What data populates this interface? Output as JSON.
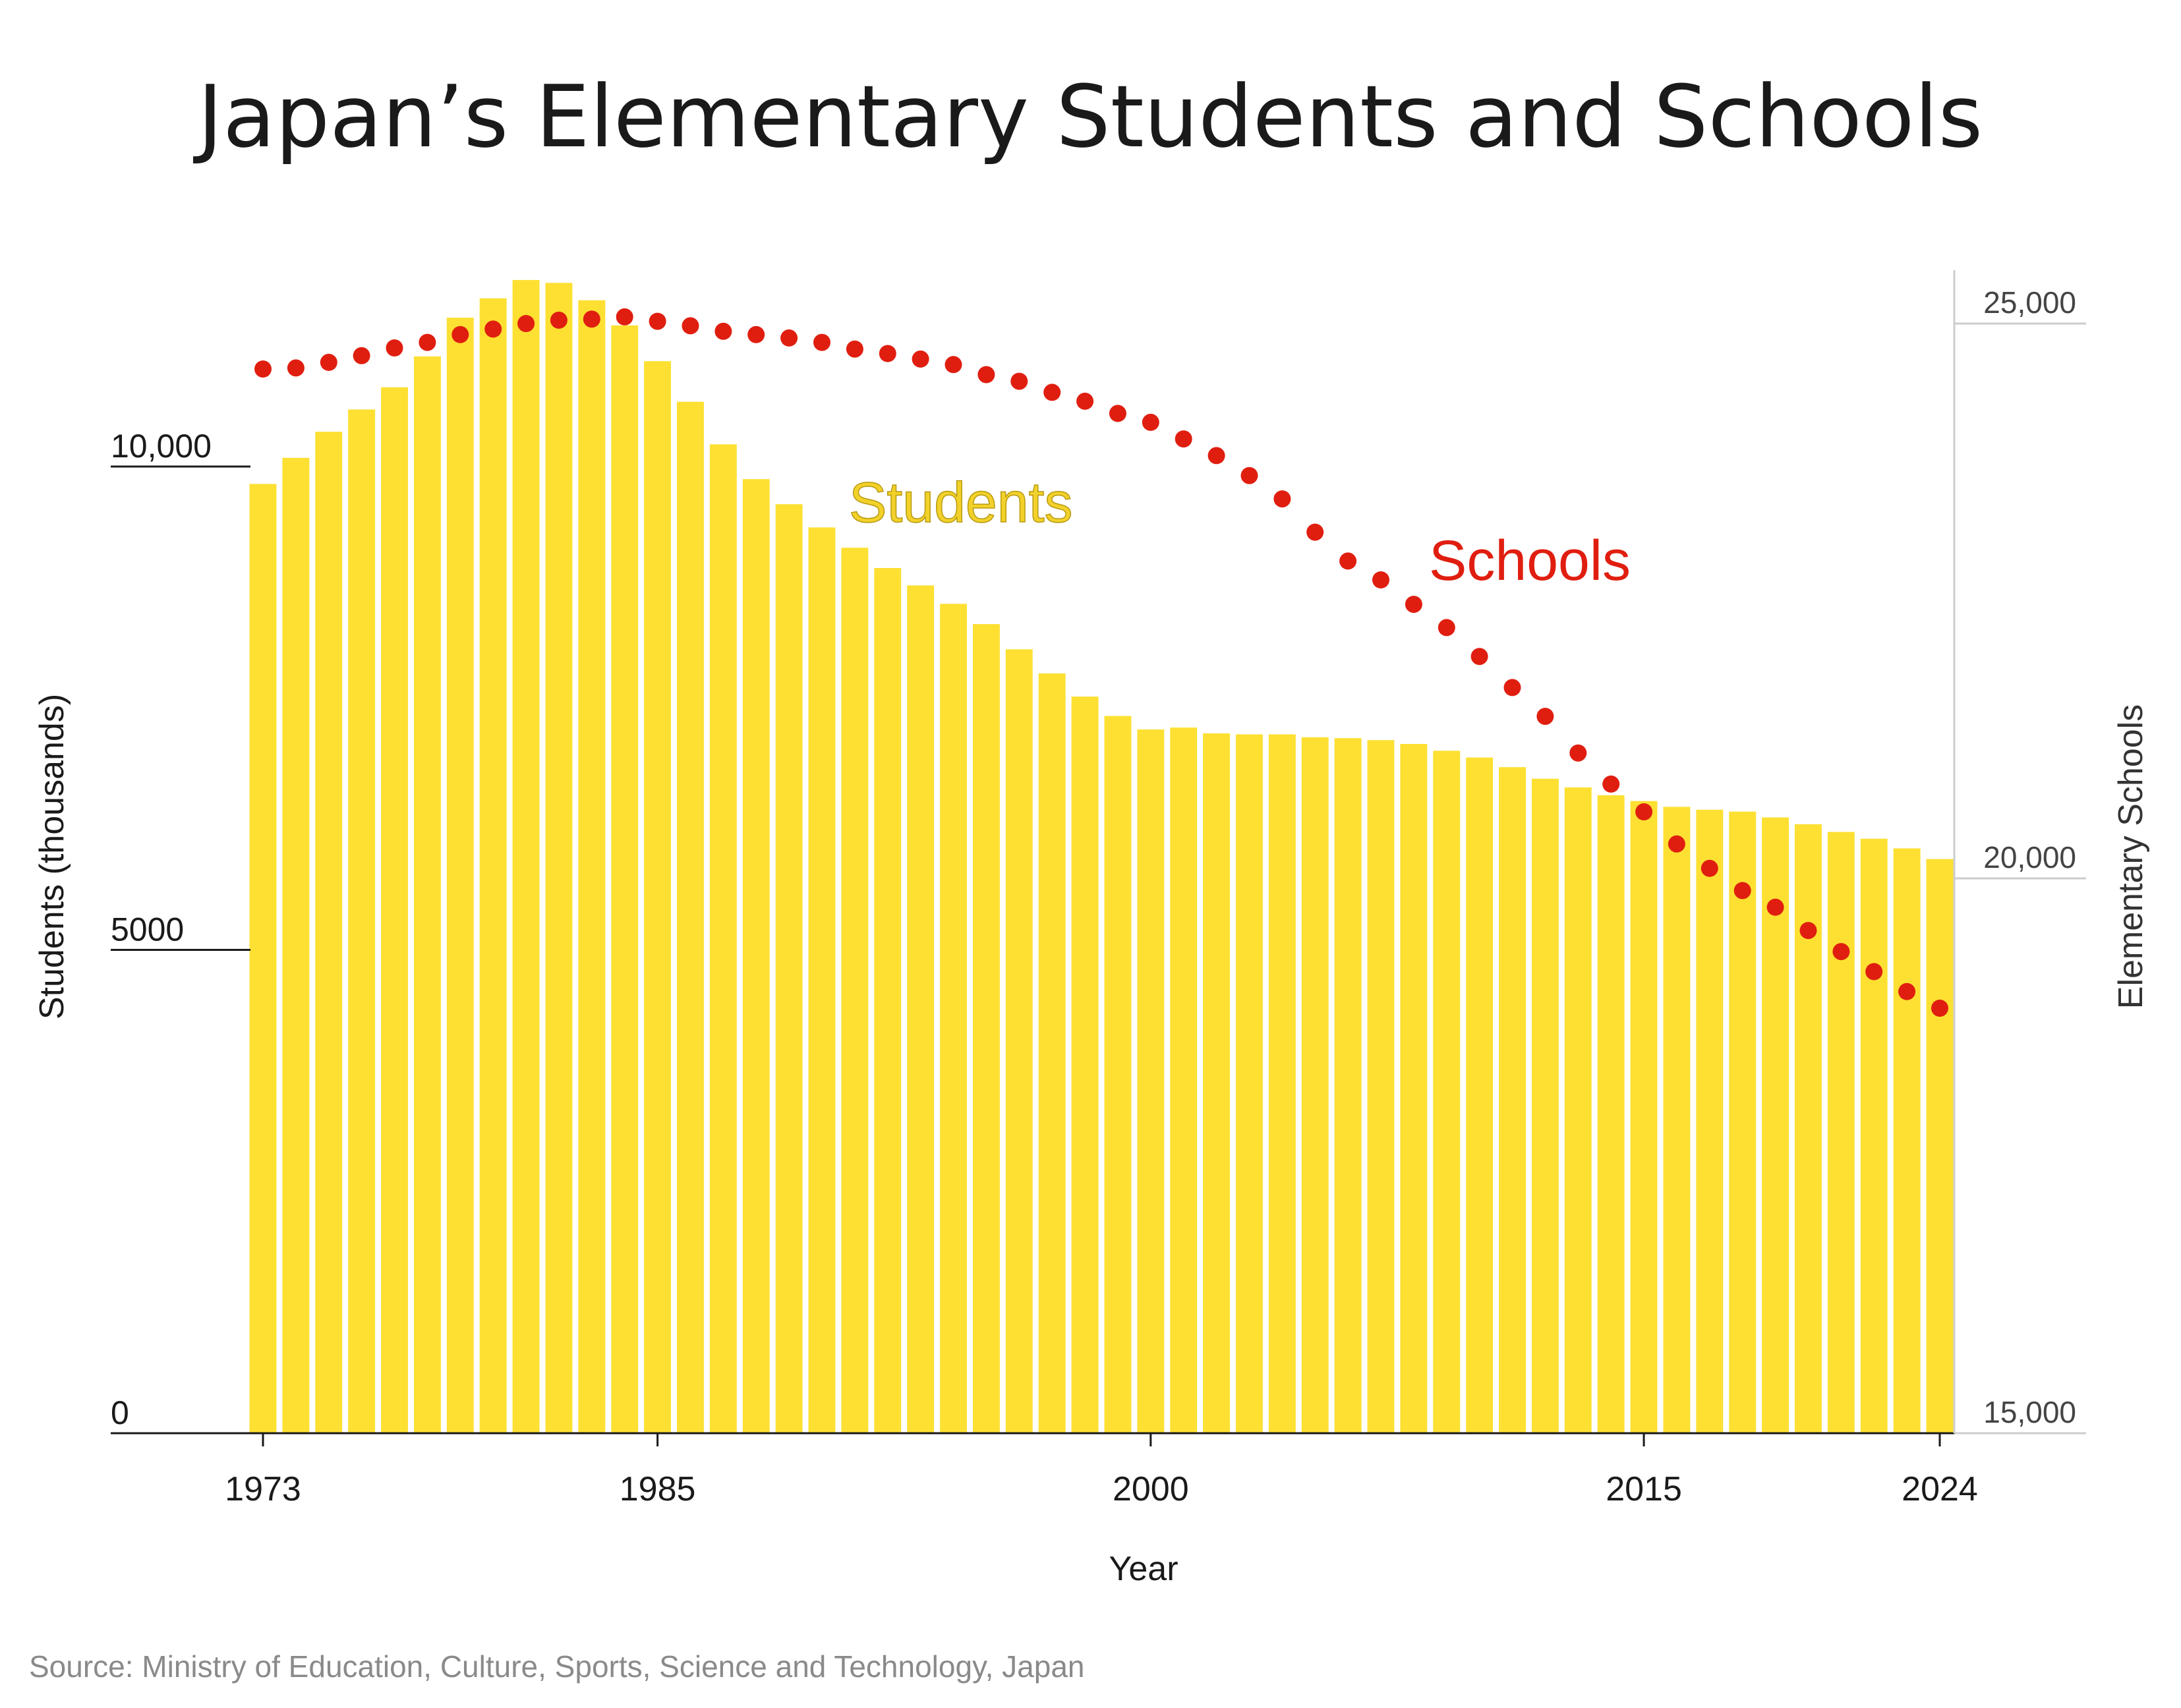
{
  "title": "Japan’s Elementary Students and Schools",
  "source": "Source: Ministry of Education, Culture, Sports, Science and Technology, Japan",
  "colors": {
    "students": "#fde032",
    "schools": "#e01e10",
    "axis": "#1a1a1a",
    "right_axis": "#cccccc"
  },
  "chart_data": {
    "type": "bar",
    "xlabel": "Year",
    "ylabel": "Students (thousands)",
    "y2label": "Elementary Schools",
    "ylim": [
      0,
      12000
    ],
    "y2lim": [
      15000,
      25500
    ],
    "x_ticks": [
      "1973",
      "1985",
      "2000",
      "2015",
      "2024"
    ],
    "y_ticks": [
      {
        "value": 0,
        "label": "0"
      },
      {
        "value": 5000,
        "label": "5000"
      },
      {
        "value": 10000,
        "label": "10,000"
      }
    ],
    "y2_ticks": [
      {
        "value": 15000,
        "label": "15,000"
      },
      {
        "value": 20000,
        "label": "20,000"
      },
      {
        "value": 25000,
        "label": "25,000"
      }
    ],
    "x": [
      1973,
      1974,
      1975,
      1976,
      1977,
      1978,
      1979,
      1980,
      1981,
      1982,
      1983,
      1984,
      1985,
      1986,
      1987,
      1988,
      1989,
      1990,
      1991,
      1992,
      1993,
      1994,
      1995,
      1996,
      1997,
      1998,
      1999,
      2000,
      2001,
      2002,
      2003,
      2004,
      2005,
      2006,
      2007,
      2008,
      2009,
      2010,
      2011,
      2012,
      2013,
      2014,
      2015,
      2016,
      2017,
      2018,
      2019,
      2020,
      2021,
      2022,
      2023,
      2024
    ],
    "series": [
      {
        "name": "Students",
        "type": "bar",
        "axis": "left",
        "values": [
          9820,
          10090,
          10360,
          10590,
          10820,
          11140,
          11540,
          11740,
          11930,
          11900,
          11720,
          11460,
          11090,
          10670,
          10230,
          9870,
          9610,
          9370,
          9160,
          8950,
          8770,
          8580,
          8370,
          8110,
          7860,
          7620,
          7420,
          7280,
          7300,
          7240,
          7230,
          7230,
          7200,
          7190,
          7170,
          7130,
          7060,
          6990,
          6890,
          6770,
          6680,
          6600,
          6540,
          6480,
          6450,
          6430,
          6370,
          6300,
          6220,
          6150,
          6050,
          5940
        ]
      },
      {
        "name": "Schools",
        "type": "scatter",
        "axis": "right",
        "values": [
          24590,
          24600,
          24650,
          24710,
          24780,
          24830,
          24900,
          24950,
          25000,
          25030,
          25040,
          25060,
          25020,
          24980,
          24930,
          24900,
          24870,
          24830,
          24770,
          24730,
          24680,
          24630,
          24540,
          24480,
          24380,
          24300,
          24190,
          24110,
          23960,
          23810,
          23630,
          23420,
          23120,
          22860,
          22690,
          22470,
          22260,
          22000,
          21720,
          21460,
          21130,
          20850,
          20600,
          20310,
          20090,
          19890,
          19740,
          19530,
          19340,
          19160,
          18980,
          18830
        ]
      }
    ]
  }
}
